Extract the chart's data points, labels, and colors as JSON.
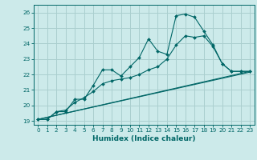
{
  "xlabel": "Humidex (Indice chaleur)",
  "ylabel": "",
  "bg_color": "#cceaea",
  "grid_color": "#aacfcf",
  "line_color": "#006666",
  "xlim": [
    -0.5,
    23.5
  ],
  "ylim": [
    18.75,
    26.5
  ],
  "yticks": [
    19,
    20,
    21,
    22,
    23,
    24,
    25,
    26
  ],
  "xticks": [
    0,
    1,
    2,
    3,
    4,
    5,
    6,
    7,
    8,
    9,
    10,
    11,
    12,
    13,
    14,
    15,
    16,
    17,
    18,
    19,
    20,
    21,
    22,
    23
  ],
  "line1_x": [
    0,
    1,
    2,
    3,
    4,
    5,
    6,
    7,
    8,
    9,
    10,
    11,
    12,
    13,
    14,
    15,
    16,
    17,
    18,
    19,
    20,
    21,
    22,
    23
  ],
  "line1_y": [
    19.1,
    19.1,
    19.6,
    19.6,
    20.4,
    20.4,
    21.3,
    22.3,
    22.3,
    21.9,
    22.5,
    23.1,
    24.3,
    23.5,
    23.3,
    25.8,
    25.9,
    25.7,
    24.8,
    23.9,
    22.7,
    22.2,
    22.2,
    22.2
  ],
  "line2_x": [
    0,
    1,
    2,
    3,
    4,
    5,
    6,
    7,
    8,
    9,
    10,
    11,
    12,
    13,
    14,
    15,
    16,
    17,
    18,
    19,
    20,
    21,
    22,
    23
  ],
  "line2_y": [
    19.1,
    19.1,
    19.6,
    19.7,
    20.2,
    20.5,
    20.9,
    21.4,
    21.6,
    21.7,
    21.8,
    22.0,
    22.3,
    22.5,
    23.0,
    23.9,
    24.5,
    24.4,
    24.5,
    23.8,
    22.7,
    22.2,
    22.2,
    22.2
  ],
  "line3_x": [
    0,
    23
  ],
  "line3_y": [
    19.1,
    22.2
  ],
  "line4_x": [
    0,
    23
  ],
  "line4_y": [
    19.1,
    22.15
  ],
  "xlabel_fontsize": 6.5,
  "tick_fontsize": 5.2,
  "lw": 0.8,
  "ms": 2.0
}
